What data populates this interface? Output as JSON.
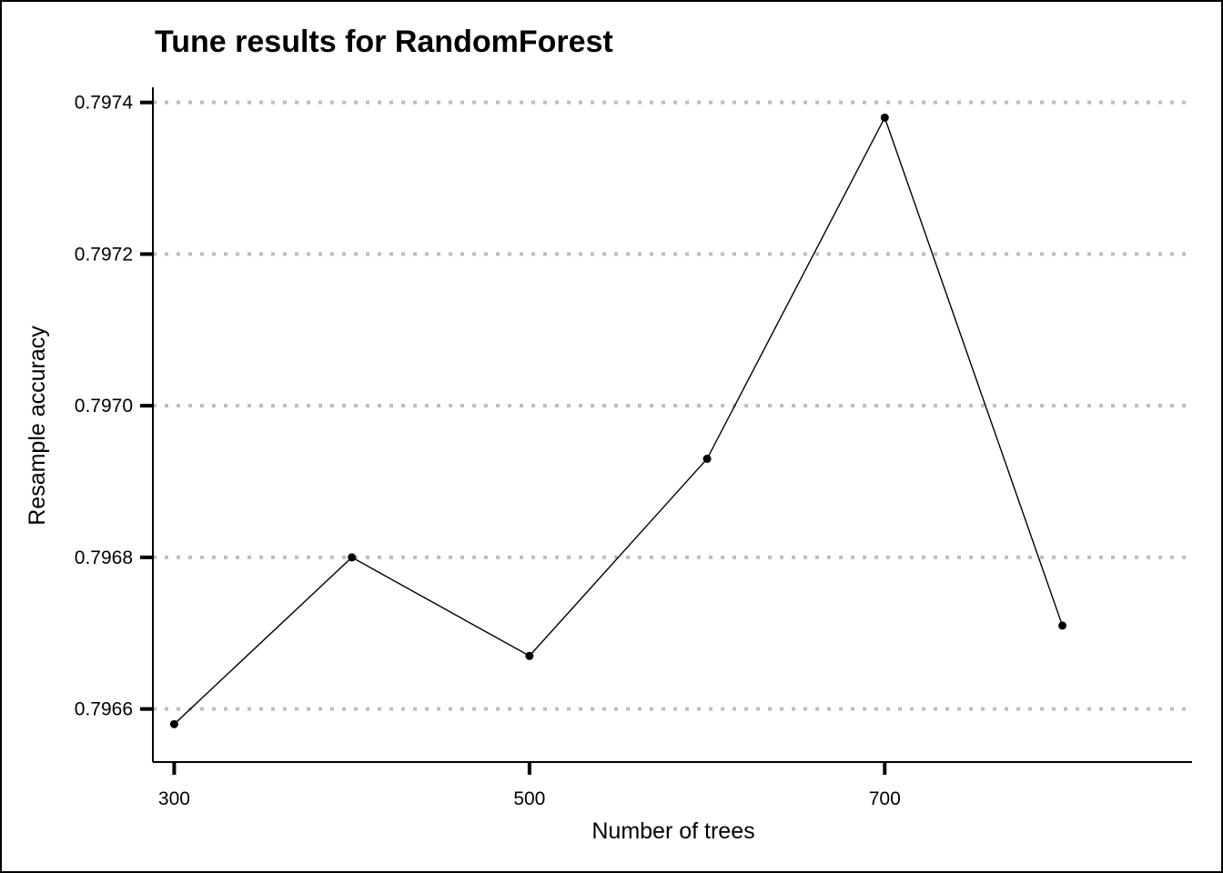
{
  "chart_data": {
    "type": "line",
    "title": "Tune results for RandomForest",
    "xlabel": "Number of trees",
    "ylabel": "Resample accuracy",
    "x": [
      300,
      400,
      500,
      600,
      700,
      800
    ],
    "y": [
      0.79658,
      0.7968,
      0.79667,
      0.79693,
      0.79738,
      0.79671
    ],
    "xticks": [
      300,
      500,
      700
    ],
    "xtick_labels": [
      "300",
      "500",
      "700"
    ],
    "yticks": [
      0.7966,
      0.7968,
      0.797,
      0.7972,
      0.7974
    ],
    "ytick_labels": [
      "0.7966",
      "0.7968",
      "0.7970",
      "0.7972",
      "0.7974"
    ],
    "xlim": [
      288,
      873
    ],
    "ylim": [
      0.79653,
      0.79742
    ],
    "grid": "horizontal dotted",
    "line_color": "#000000",
    "grid_color": "#bdbdbd"
  }
}
